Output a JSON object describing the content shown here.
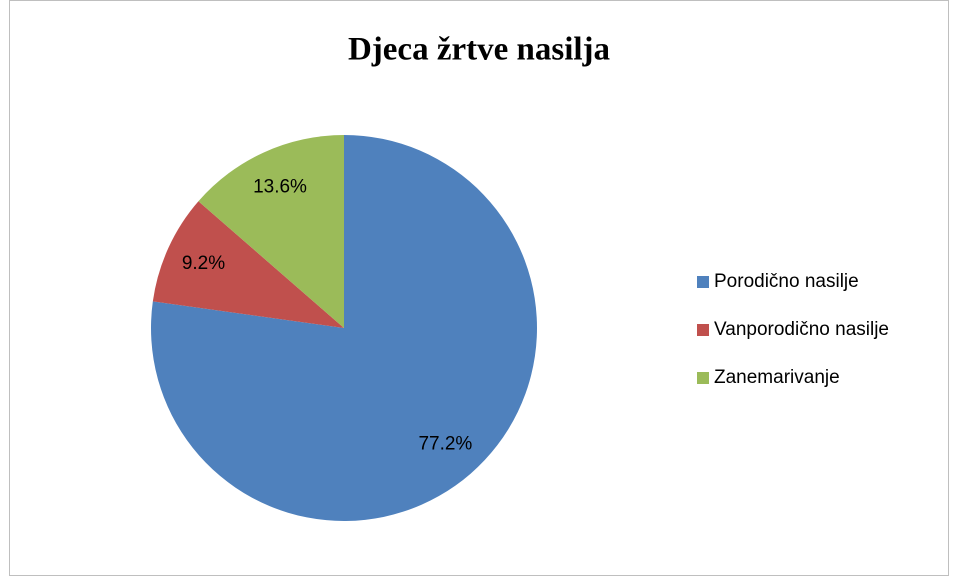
{
  "chart_data": {
    "type": "pie",
    "title": "Djeca žrtve nasilja",
    "categories": [
      "Porodično nasilje",
      "Vanporodično nasilje",
      "Zanemarivanje"
    ],
    "values": [
      77.2,
      9.2,
      13.6
    ],
    "value_labels": [
      "77.2%",
      "9.2%",
      "13.6%"
    ],
    "colors": [
      "#4f81bd",
      "#c0504d",
      "#9bbb59"
    ],
    "legend": "right"
  }
}
